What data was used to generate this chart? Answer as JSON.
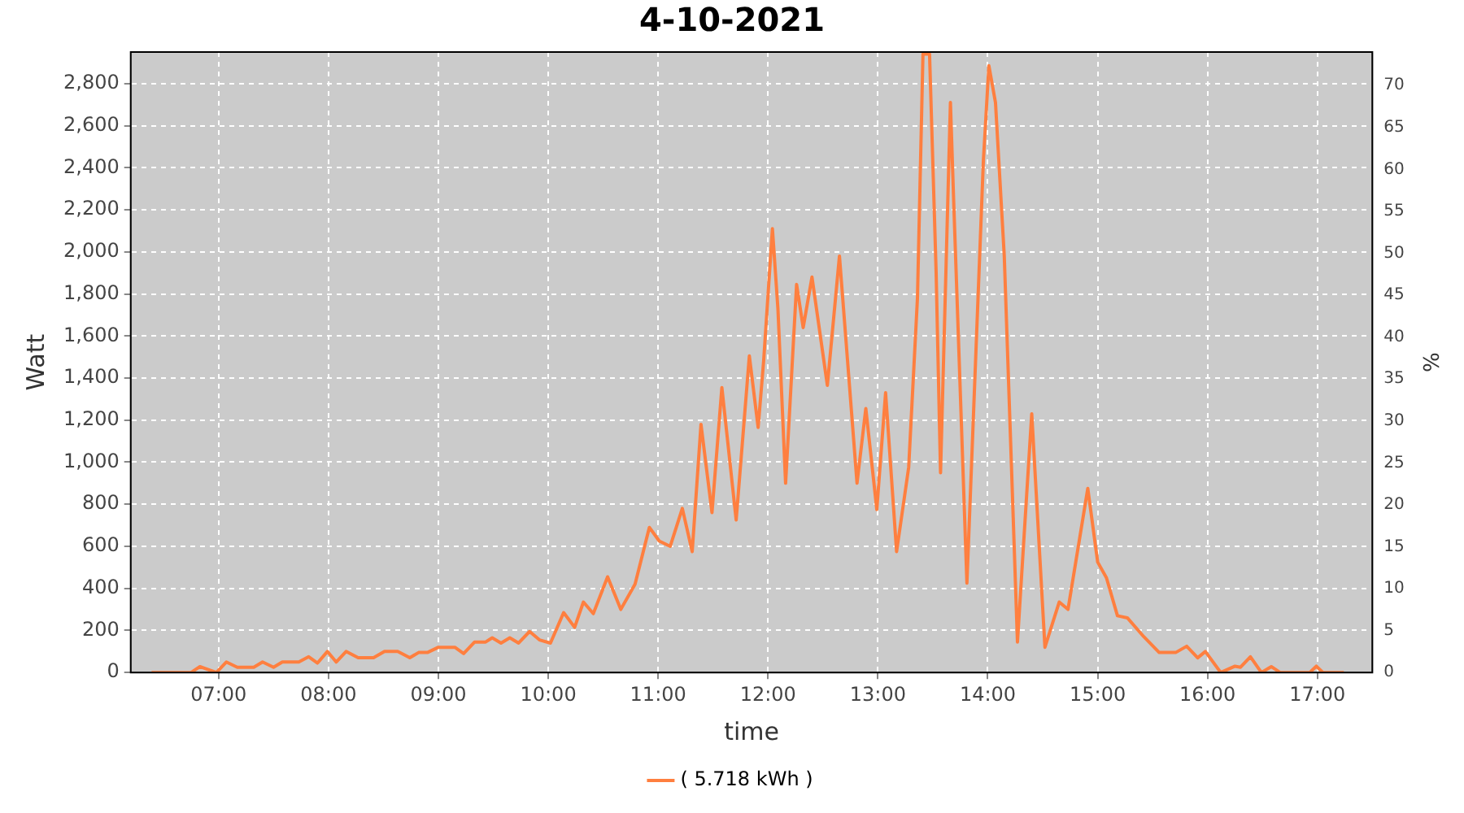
{
  "chart_data": {
    "type": "line",
    "title": "4-10-2021",
    "xlabel": "time",
    "ylabel": "Watt",
    "y2label": "%",
    "x": [
      6.39,
      6.75,
      6.83,
      6.98,
      7.07,
      7.17,
      7.32,
      7.4,
      7.5,
      7.58,
      7.73,
      7.82,
      7.9,
      7.99,
      8.07,
      8.16,
      8.27,
      8.41,
      8.51,
      8.63,
      8.74,
      8.82,
      8.9,
      9.0,
      9.15,
      9.23,
      9.33,
      9.43,
      9.49,
      9.57,
      9.65,
      9.73,
      9.83,
      9.92,
      10.02,
      10.14,
      10.24,
      10.32,
      10.41,
      10.54,
      10.66,
      10.79,
      10.92,
      11.01,
      11.11,
      11.22,
      11.31,
      11.39,
      11.49,
      11.58,
      11.71,
      11.83,
      11.91,
      11.96,
      12.04,
      12.09,
      12.16,
      12.26,
      12.32,
      12.4,
      12.54,
      12.65,
      12.81,
      12.89,
      12.99,
      13.07,
      13.17,
      13.28,
      13.36,
      13.41,
      13.47,
      13.53,
      13.57,
      13.66,
      13.69,
      13.81,
      13.96,
      14.01,
      14.07,
      14.15,
      14.27,
      14.4,
      14.52,
      14.65,
      14.73,
      14.91,
      15.0,
      15.08,
      15.18,
      15.27,
      15.42,
      15.56,
      15.71,
      15.81,
      15.91,
      15.98,
      16.12,
      16.25,
      16.3,
      16.39,
      16.49,
      16.58,
      16.66,
      16.93,
      16.99,
      17.05,
      17.24
    ],
    "series": [
      {
        "name": "( 5.718 kWh )",
        "color": "#ff7f3f",
        "values": [
          0,
          0,
          28,
          0,
          50,
          25,
          25,
          50,
          25,
          50,
          50,
          75,
          45,
          100,
          50,
          100,
          70,
          70,
          100,
          100,
          70,
          95,
          95,
          120,
          120,
          90,
          145,
          145,
          165,
          140,
          165,
          140,
          195,
          155,
          140,
          285,
          215,
          335,
          280,
          455,
          300,
          420,
          690,
          625,
          600,
          780,
          575,
          1180,
          760,
          1355,
          725,
          1505,
          1165,
          1480,
          2110,
          1730,
          900,
          1845,
          1640,
          1880,
          1365,
          1980,
          900,
          1255,
          775,
          1330,
          575,
          975,
          1780,
          2940,
          2940,
          1900,
          950,
          2710,
          2235,
          425,
          2435,
          2885,
          2710,
          1980,
          145,
          1230,
          120,
          335,
          300,
          875,
          525,
          450,
          270,
          260,
          170,
          95,
          95,
          125,
          70,
          100,
          0,
          30,
          25,
          75,
          0,
          28,
          0,
          0,
          30,
          0,
          0
        ]
      }
    ],
    "xlim": [
      6.2,
      17.5
    ],
    "xticks": [
      {
        "value": 7,
        "label": "07:00"
      },
      {
        "value": 8,
        "label": "08:00"
      },
      {
        "value": 9,
        "label": "09:00"
      },
      {
        "value": 10,
        "label": "10:00"
      },
      {
        "value": 11,
        "label": "11:00"
      },
      {
        "value": 12,
        "label": "12:00"
      },
      {
        "value": 13,
        "label": "13:00"
      },
      {
        "value": 14,
        "label": "14:00"
      },
      {
        "value": 15,
        "label": "15:00"
      },
      {
        "value": 16,
        "label": "16:00"
      },
      {
        "value": 17,
        "label": "17:00"
      }
    ],
    "ylim": [
      0,
      2950
    ],
    "yticks": [
      0,
      200,
      400,
      600,
      800,
      {
        "value": 1000,
        "label": "1,000"
      },
      {
        "value": 1200,
        "label": "1,200"
      },
      {
        "value": 1400,
        "label": "1,400"
      },
      {
        "value": 1600,
        "label": "1,600"
      },
      {
        "value": 1800,
        "label": "1,800"
      },
      {
        "value": 2000,
        "label": "2,000"
      },
      {
        "value": 2200,
        "label": "2,200"
      },
      {
        "value": 2400,
        "label": "2,400"
      },
      {
        "value": 2600,
        "label": "2,600"
      },
      {
        "value": 2800,
        "label": "2,800"
      }
    ],
    "y2lim": [
      0,
      74
    ],
    "y2ticks": [
      0,
      5,
      10,
      15,
      20,
      25,
      30,
      35,
      40,
      45,
      50,
      55,
      60,
      65,
      70
    ],
    "grid": true,
    "legend": "bottom",
    "marker": "none",
    "line_style": "solid"
  }
}
